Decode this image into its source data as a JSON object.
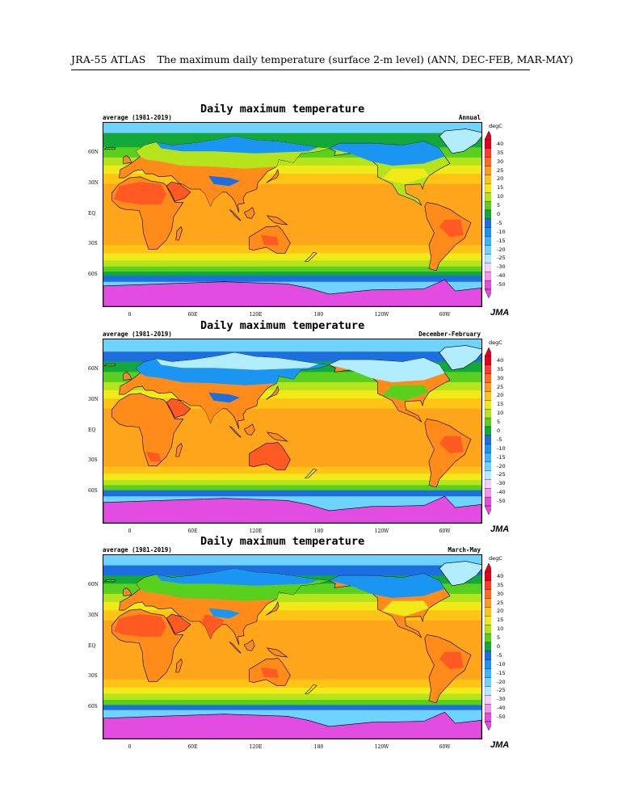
{
  "header": {
    "atlas": "JRA-55 ATLAS",
    "description": "The maximum daily temperature (surface 2-m level) (ANN, DEC-FEB, MAR-MAY)"
  },
  "panels": [
    {
      "title": "Daily maximum temperature",
      "period": "average (1981-2019)",
      "season": "Annual",
      "logo": "JMA",
      "unit": "degC"
    },
    {
      "title": "Daily maximum temperature",
      "period": "average (1981-2019)",
      "season": "December-February",
      "logo": "JMA",
      "unit": "degC"
    },
    {
      "title": "Daily maximum temperature",
      "period": "average (1981-2019)",
      "season": "March-May",
      "logo": "JMA",
      "unit": "degC"
    }
  ],
  "lat_labels": [
    "60N",
    "30N",
    "EQ",
    "30S",
    "60S"
  ],
  "lon_labels": [
    "0",
    "60E",
    "120E",
    "180",
    "120W",
    "60W"
  ],
  "colorbar": {
    "labels": [
      "40",
      "35",
      "30",
      "25",
      "20",
      "15",
      "10",
      "5",
      "0",
      "-5",
      "-10",
      "-15",
      "-20",
      "-25",
      "-30",
      "-40",
      "-50"
    ],
    "colors": [
      "#e4001a",
      "#ff3a2a",
      "#ff6a22",
      "#ff9a1a",
      "#ffc414",
      "#f2ea18",
      "#b6e41c",
      "#5ad01e",
      "#12a83a",
      "#1d6fe0",
      "#1a95f2",
      "#3ab5ff",
      "#6ed4ff",
      "#b2ecff",
      "#f2d0f8",
      "#f096ec",
      "#e24ce0"
    ]
  },
  "map_colors": {
    "ocean_tropic": "#ffa51c",
    "ocean_sub": "#ffc414",
    "ocean_mid": "#f2ea18",
    "ocean_cool": "#b6e41c",
    "ocean_cold": "#5ad01e",
    "ocean_polar": "#12a83a",
    "southern_ocean": "#1d6fe0",
    "sea_ice": "#6ed4ff",
    "antarctica": "#e24ce0",
    "land_hot": "#ff5a22",
    "land_warm": "#ff8c1a",
    "land_cold": "#1a95f2",
    "land_frozen": "#b2ecff"
  }
}
